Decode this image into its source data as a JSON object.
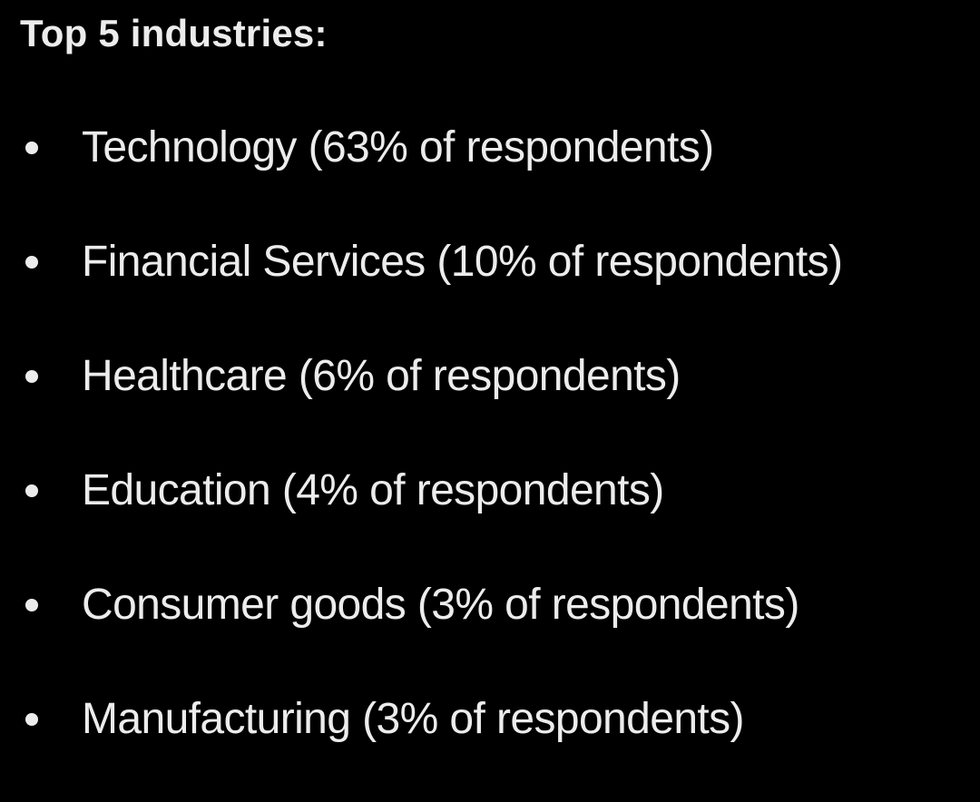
{
  "heading": "Top 5 industries:",
  "items": [
    {
      "label": "Technology (63% of respondents)"
    },
    {
      "label": "Financial Services (10% of respondents)"
    },
    {
      "label": "Healthcare (6% of respondents)"
    },
    {
      "label": "Education (4% of respondents)"
    },
    {
      "label": "Consumer goods (3% of respondents)"
    },
    {
      "label": "Manufacturing (3% of respondents)"
    }
  ],
  "colors": {
    "background": "#000000",
    "text": "#ececec"
  }
}
